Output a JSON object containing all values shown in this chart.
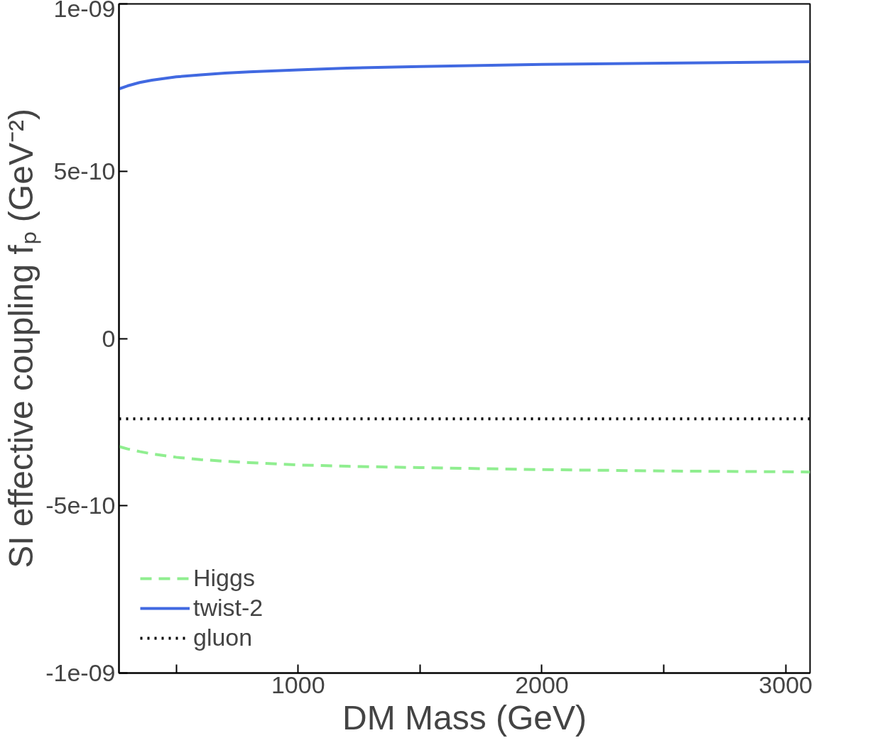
{
  "chart_data": {
    "type": "line",
    "xlabel": "DM Mass (GeV)",
    "ylabel": "SI effective coupling fₚ (GeV⁻²)",
    "x": [
      265,
      300,
      350,
      400,
      500,
      600,
      700,
      800,
      1000,
      1200,
      1500,
      2000,
      2500,
      3100
    ],
    "series": [
      {
        "name": "Higgs",
        "color": "#90ee90",
        "line_style": "dashed",
        "values": [
          -3.23e-10,
          -3.3e-10,
          -3.38e-10,
          -3.45e-10,
          -3.55e-10,
          -3.62e-10,
          -3.67e-10,
          -3.71e-10,
          -3.78e-10,
          -3.82e-10,
          -3.86e-10,
          -3.92e-10,
          -3.96e-10,
          -3.99e-10
        ]
      },
      {
        "name": "twist-2",
        "color": "#4169e1",
        "line_style": "solid",
        "values": [
          7.46e-10,
          7.55e-10,
          7.65e-10,
          7.72e-10,
          7.82e-10,
          7.88e-10,
          7.93e-10,
          7.97e-10,
          8.03e-10,
          8.08e-10,
          8.13e-10,
          8.19e-10,
          8.23e-10,
          8.27e-10
        ]
      },
      {
        "name": "gluon",
        "color": "#000000",
        "line_style": "dotted",
        "values": [
          -2.4e-10,
          -2.4e-10,
          -2.4e-10,
          -2.4e-10,
          -2.4e-10,
          -2.4e-10,
          -2.4e-10,
          -2.4e-10,
          -2.4e-10,
          -2.4e-10,
          -2.4e-10,
          -2.4e-10,
          -2.4e-10,
          -2.4e-10
        ]
      }
    ],
    "xlim": [
      265,
      3100
    ],
    "xticks": [
      {
        "value": 500,
        "label": null
      },
      1000,
      {
        "value": 1500,
        "label": null
      },
      2000,
      {
        "value": 2500,
        "label": null
      },
      3000
    ],
    "ylim": [
      -1e-09,
      1e-09
    ],
    "yticks": [
      {
        "value": -1e-09,
        "label": "-1e-09"
      },
      {
        "value": -5e-10,
        "label": "-5e-10"
      },
      {
        "value": 0,
        "label": "0"
      },
      {
        "value": 5e-10,
        "label": "5e-10"
      },
      {
        "value": 1e-09,
        "label": "1e-09"
      }
    ],
    "grid": false,
    "legend": "bottom left",
    "marker": "none"
  }
}
